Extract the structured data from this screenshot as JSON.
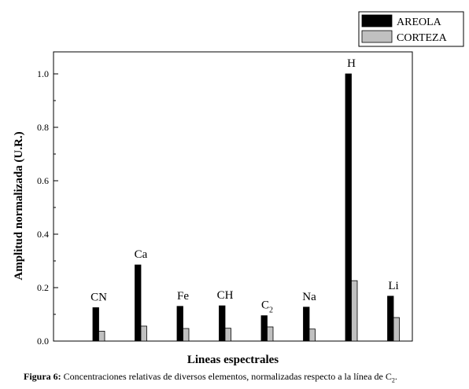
{
  "chart_data": {
    "type": "bar",
    "xlabel": "Lineas espectrales",
    "ylabel": "Amplitud normalizada (U.R.)",
    "ylim": [
      0,
      1.08
    ],
    "yticks": [
      "0.0",
      "0.2",
      "0.4",
      "0.6",
      "0.8",
      "1.0"
    ],
    "legend_position": "top-right",
    "categories": [
      {
        "label": "CN"
      },
      {
        "label": "Ca"
      },
      {
        "label": "Fe"
      },
      {
        "label": "CH"
      },
      {
        "label": "C",
        "sub": "2"
      },
      {
        "label": "Na"
      },
      {
        "label": "H"
      },
      {
        "label": "Li"
      }
    ],
    "series": [
      {
        "name": "AREOLA",
        "color": "#000000",
        "values": [
          0.125,
          0.285,
          0.13,
          0.132,
          0.095,
          0.127,
          1.0,
          0.168
        ]
      },
      {
        "name": "CORTEZA",
        "color": "#c0c0c0",
        "values": [
          0.037,
          0.056,
          0.047,
          0.048,
          0.053,
          0.045,
          0.226,
          0.088
        ]
      }
    ]
  },
  "caption": {
    "prefix": "Figura 6:",
    "text": " Concentraciones relativas de diversos elementos, normalizadas respecto a la línea de C",
    "sub": "2",
    "end": "."
  }
}
